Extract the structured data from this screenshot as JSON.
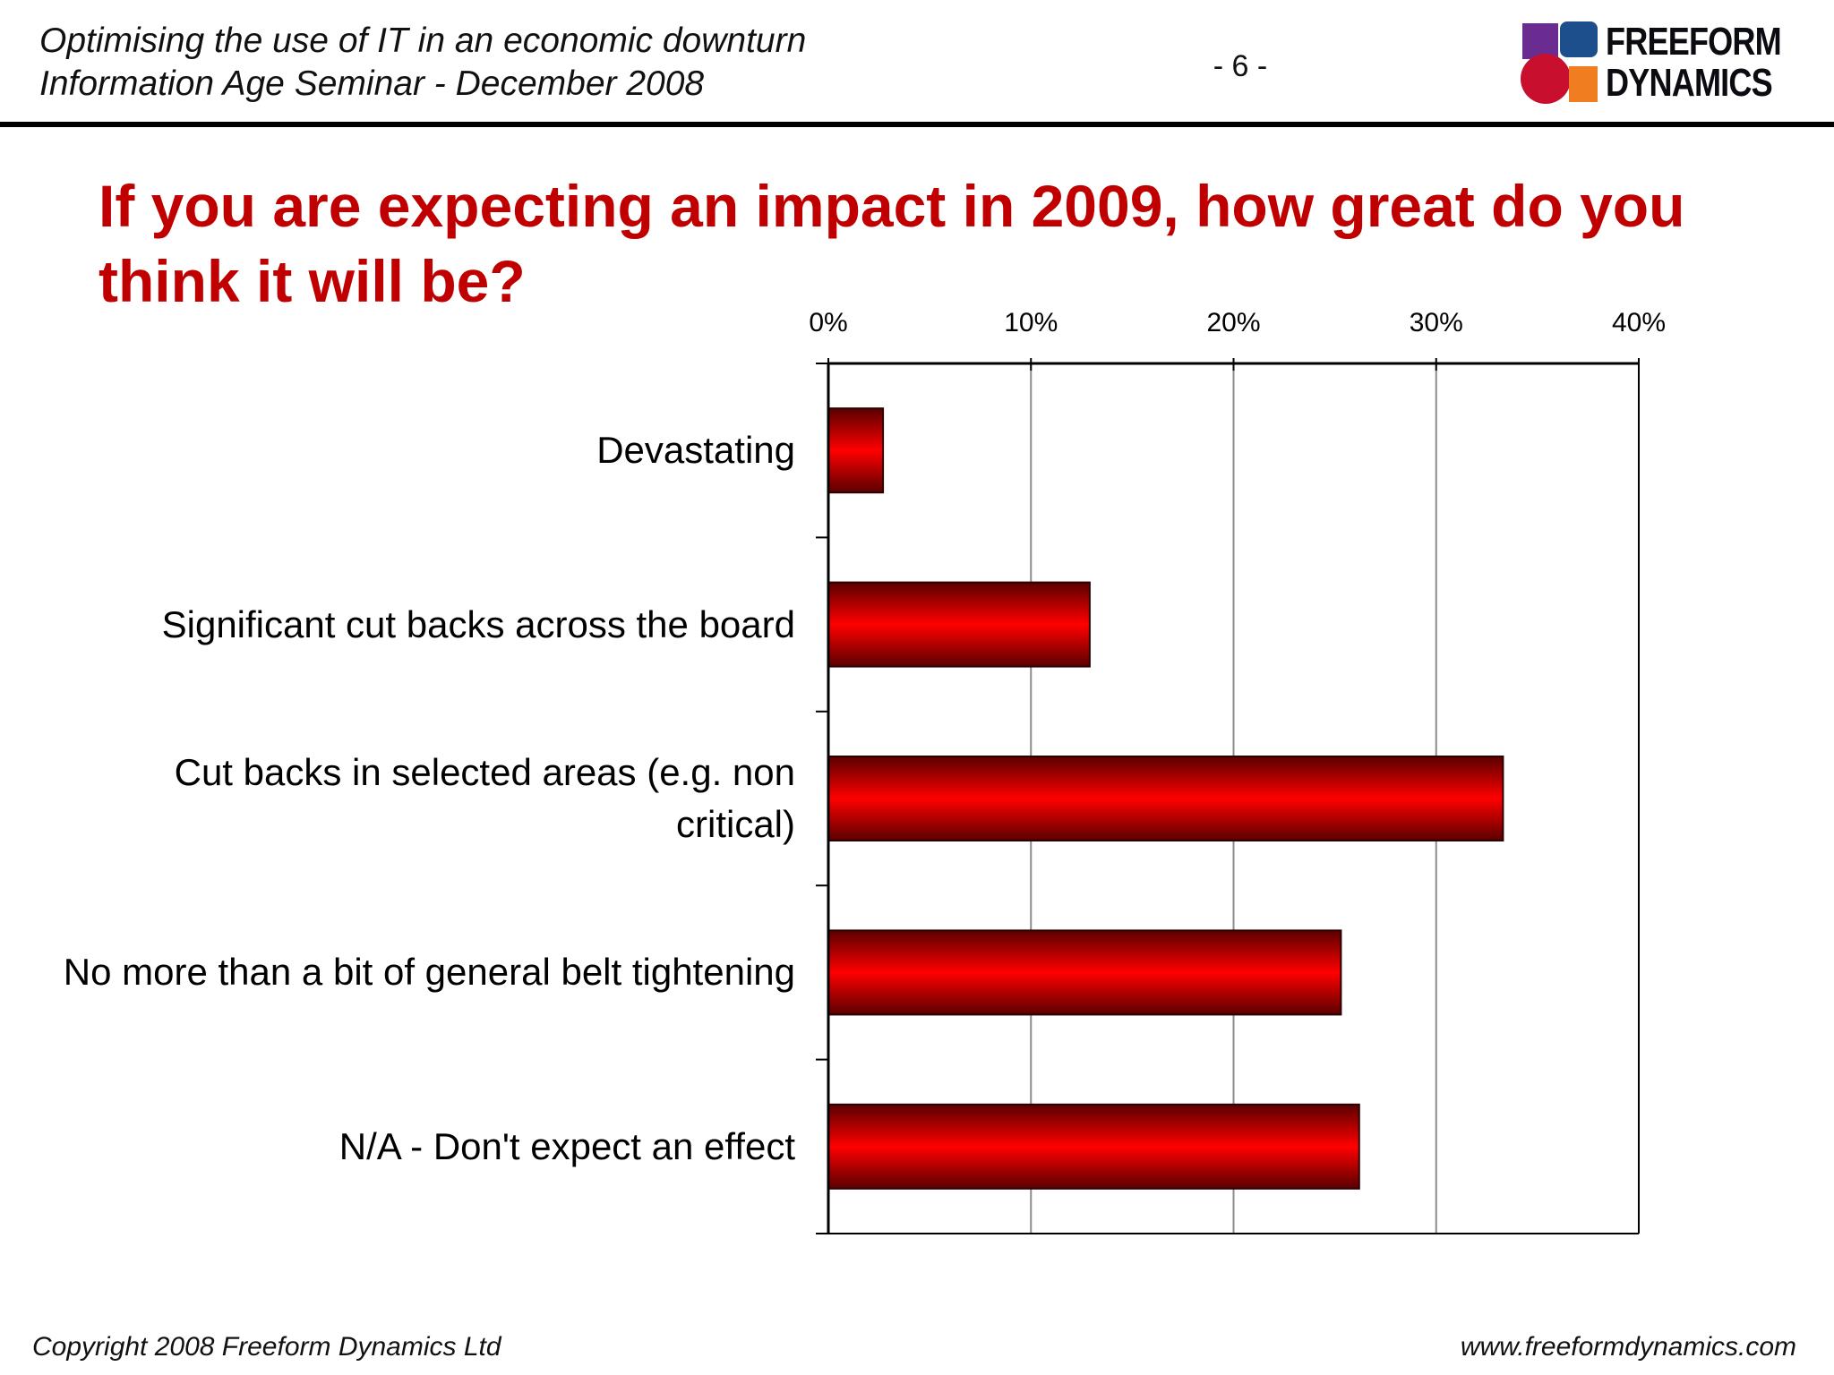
{
  "header": {
    "line1": "Optimising the use of IT in an economic downturn",
    "line2": "Information Age Seminar - December 2008",
    "page_number": "- 6 -"
  },
  "logo": {
    "line1": "FREEFORM",
    "line2": "DYNAMICS",
    "colors": [
      "#6a2c91",
      "#1c4f8c",
      "#c8102e",
      "#f07d1f"
    ]
  },
  "chart_data": {
    "type": "bar",
    "orientation": "horizontal",
    "title": "If you are expecting an impact in 2009, how great do you think it will be?",
    "categories": [
      "Devastating",
      "Significant cut backs across the board",
      "Cut backs in selected areas (e.g. non critical)",
      "No more than a bit of general belt tightening",
      "N/A - Don't expect an effect"
    ],
    "values": [
      2.7,
      12.9,
      33.3,
      25.3,
      26.2
    ],
    "xlim": [
      0,
      40
    ],
    "x_ticks": [
      "0%",
      "10%",
      "20%",
      "30%",
      "40%"
    ],
    "x_tick_values": [
      0,
      10,
      20,
      30,
      40
    ],
    "axis_position": "top",
    "grid": true,
    "bar_color": "#ff0000"
  },
  "footer": {
    "copyright": "Copyright 2008 Freeform Dynamics Ltd",
    "url": "www.freeformdynamics.com"
  }
}
